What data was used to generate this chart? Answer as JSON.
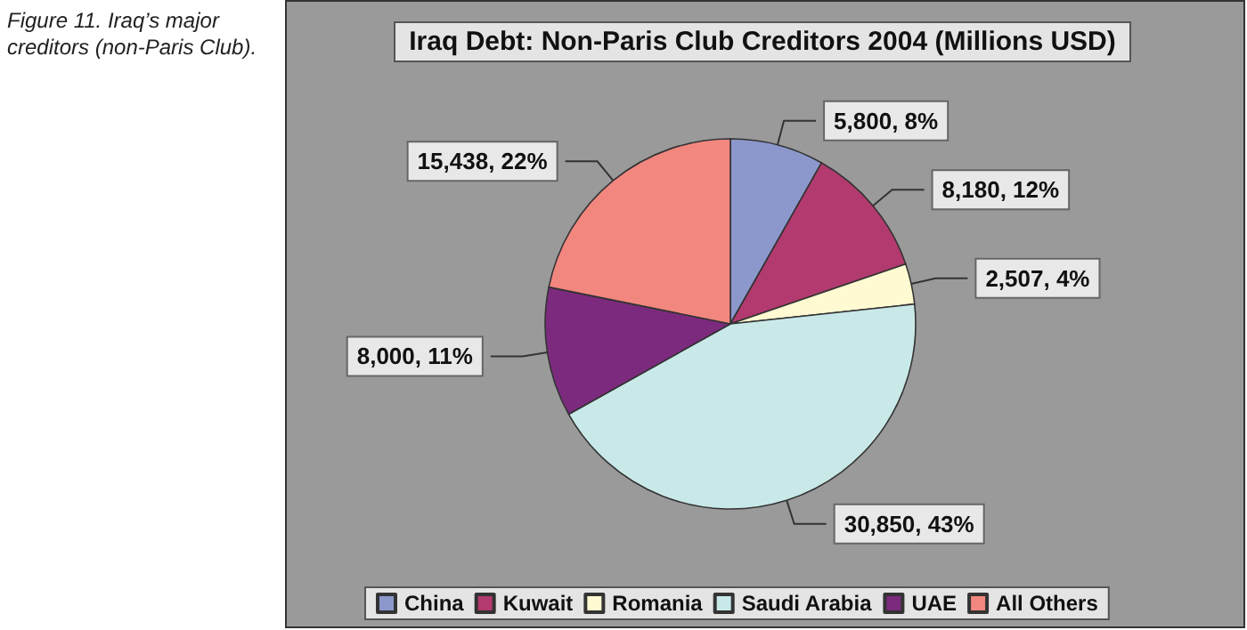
{
  "chart_data": {
    "type": "pie",
    "title": "Iraq Debt: Non-Paris Club Creditors 2004 (Millions USD)",
    "categories": [
      "China",
      "Kuwait",
      "Romania",
      "Saudi Arabia",
      "UAE",
      "All Others"
    ],
    "values": [
      5800,
      8180,
      2507,
      30850,
      8000,
      15438
    ],
    "value_labels": [
      "5,800, 8%",
      "8,180, 12%",
      "2,507, 4%",
      "30,850, 43%",
      "8,000, 11%",
      "15,438, 22%"
    ],
    "colors": [
      "#8c98cc",
      "#b23a6e",
      "#fffad2",
      "#c9e9e9",
      "#7c2a7e",
      "#f2877f"
    ],
    "legend": "bottom",
    "annotations": [
      "Figure 11. Iraq’s major creditors (non-Paris Club)."
    ]
  }
}
